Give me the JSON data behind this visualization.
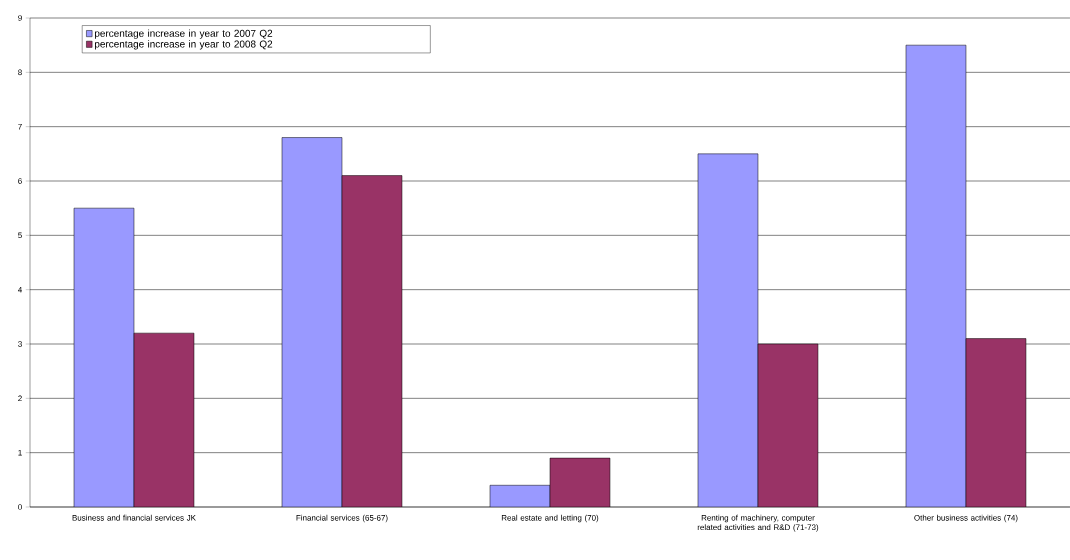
{
  "chart_data": {
    "type": "bar",
    "categories": [
      "Business and financial services JK",
      "Financial services (65-67)",
      "Real estate and letting (70)",
      "Renting of machinery, computer related activities and R&D (71-73)",
      "Other business activities (74)"
    ],
    "series": [
      {
        "name": "percentage increase in year to 2007 Q2",
        "color": "#9999ff",
        "values": [
          5.5,
          6.8,
          0.4,
          6.5,
          8.5
        ]
      },
      {
        "name": "percentage increase in year to 2008 Q2",
        "color": "#993366",
        "values": [
          3.2,
          6.1,
          0.9,
          3.0,
          3.1
        ]
      }
    ],
    "ylim": [
      0,
      9
    ],
    "yticks": [
      0,
      1,
      2,
      3,
      4,
      5,
      6,
      7,
      8,
      9
    ],
    "grid": "y",
    "legend": "top left"
  }
}
